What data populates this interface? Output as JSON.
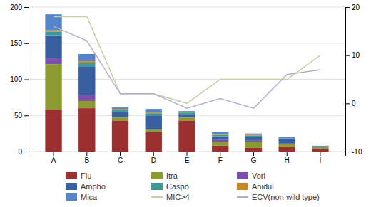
{
  "chart_data": {
    "type": "bar",
    "stacked": true,
    "categories": [
      "A",
      "B",
      "C",
      "D",
      "E",
      "F",
      "G",
      "H",
      "I"
    ],
    "series": [
      {
        "name": "Flu",
        "color": "#9B3030",
        "values": [
          58,
          60,
          43,
          27,
          43,
          8,
          5,
          7,
          4
        ]
      },
      {
        "name": "Itra",
        "color": "#8B9B30",
        "values": [
          63,
          10,
          4,
          3,
          4,
          5,
          8,
          3,
          2
        ]
      },
      {
        "name": "Vori",
        "color": "#7B4FAB",
        "values": [
          8,
          8,
          0,
          0,
          0,
          3,
          2,
          1,
          0
        ]
      },
      {
        "name": "Ampho",
        "color": "#3A5FA0",
        "values": [
          32,
          40,
          8,
          20,
          5,
          5,
          5,
          6,
          1
        ]
      },
      {
        "name": "Caspo",
        "color": "#3A9B9B",
        "values": [
          5,
          5,
          3,
          3,
          2,
          2,
          2,
          1,
          0
        ]
      },
      {
        "name": "Anidul",
        "color": "#CC8822",
        "values": [
          2,
          2,
          1,
          1,
          1,
          1,
          1,
          0,
          0
        ]
      },
      {
        "name": "Mica",
        "color": "#5585C8",
        "values": [
          22,
          10,
          2,
          5,
          1,
          3,
          2,
          2,
          1
        ]
      },
      {
        "name": "MIC>4",
        "type": "line",
        "axis": "y2",
        "color": "#C8CCA0",
        "values": [
          18,
          18,
          2,
          2,
          0,
          5,
          5,
          5,
          10
        ]
      },
      {
        "name": "ECV(non-wild type)",
        "type": "line",
        "axis": "y2",
        "color": "#B0B0CC",
        "values": [
          16,
          13,
          2,
          2,
          -1,
          1,
          -1,
          6,
          7
        ]
      }
    ],
    "ylim": [
      0,
      200
    ],
    "yticks": [
      0,
      50,
      100,
      150,
      200
    ],
    "y2lim": [
      -10,
      20
    ],
    "y2ticks": [
      -10,
      0,
      10,
      20
    ],
    "grid": true,
    "legend": "bottom"
  }
}
